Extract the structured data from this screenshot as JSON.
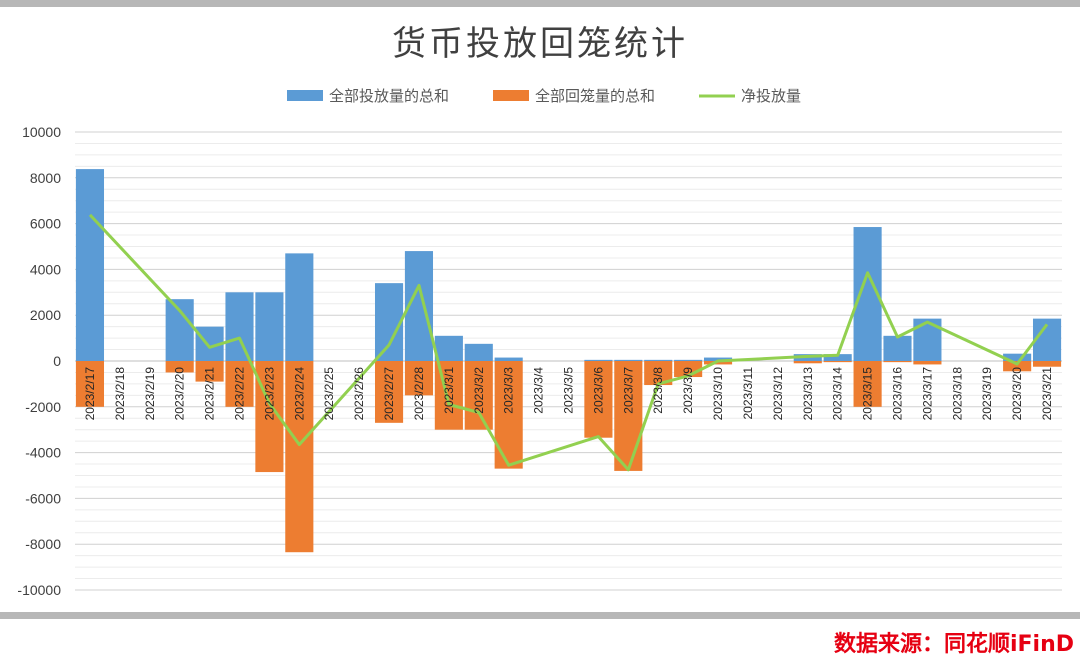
{
  "chart_data": {
    "type": "bar",
    "title": "货币投放回笼统计",
    "categories": [
      "2023/2/17",
      "2023/2/18",
      "2023/2/19",
      "2023/2/20",
      "2023/2/21",
      "2023/2/22",
      "2023/2/23",
      "2023/2/24",
      "2023/2/25",
      "2023/2/26",
      "2023/2/27",
      "2023/2/28",
      "2023/3/1",
      "2023/3/2",
      "2023/3/3",
      "2023/3/4",
      "2023/3/5",
      "2023/3/6",
      "2023/3/7",
      "2023/3/8",
      "2023/3/9",
      "2023/3/10",
      "2023/3/11",
      "2023/3/12",
      "2023/3/13",
      "2023/3/14",
      "2023/3/15",
      "2023/3/16",
      "2023/3/17",
      "2023/3/18",
      "2023/3/19",
      "2023/3/20",
      "2023/3/21"
    ],
    "series": [
      {
        "name": "全部投放量的总和",
        "type": "bar",
        "color": "#5b9bd5",
        "values": [
          8380,
          null,
          null,
          2700,
          1500,
          3000,
          3000,
          4700,
          null,
          null,
          3400,
          4800,
          1100,
          750,
          150,
          null,
          null,
          50,
          50,
          50,
          50,
          150,
          null,
          null,
          300,
          300,
          5850,
          1100,
          1850,
          null,
          null,
          320,
          1850
        ]
      },
      {
        "name": "全部回笼量的总和",
        "type": "bar",
        "color": "#ed7d31",
        "values": [
          -2000,
          null,
          null,
          -500,
          -900,
          -2000,
          -4850,
          -8350,
          null,
          null,
          -2700,
          -1500,
          -3000,
          -3000,
          -4700,
          null,
          null,
          -3350,
          -4800,
          -1050,
          -700,
          -150,
          null,
          null,
          -100,
          -50,
          -2000,
          -50,
          -150,
          null,
          null,
          -450,
          -250
        ]
      },
      {
        "name": "净投放量",
        "type": "line",
        "color": "#92d050",
        "values": [
          6380,
          null,
          null,
          2200,
          600,
          1000,
          -1850,
          -3650,
          null,
          null,
          700,
          3300,
          -1900,
          -2250,
          -4550,
          null,
          null,
          -3300,
          -4750,
          -1000,
          -650,
          0,
          null,
          null,
          200,
          250,
          3850,
          1050,
          1700,
          null,
          null,
          -130,
          1600
        ]
      }
    ],
    "ylim": [
      -10000,
      10000
    ],
    "yticks": [
      10000,
      8000,
      6000,
      4000,
      2000,
      0,
      -2000,
      -4000,
      -6000,
      -8000,
      -10000
    ],
    "xlabel": "",
    "ylabel": "",
    "legend_position": "top-center",
    "grid": true
  },
  "source_label": "数据来源：同花顺iFinD"
}
